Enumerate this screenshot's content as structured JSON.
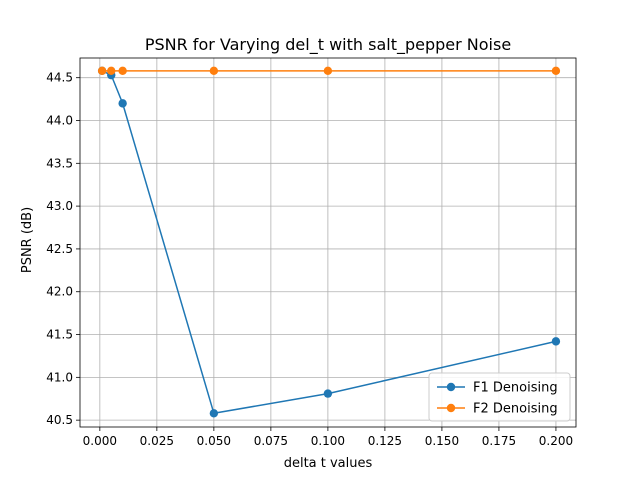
{
  "chart_data": {
    "type": "line",
    "title": "PSNR for Varying del_t with salt_pepper Noise",
    "xlabel": "delta t values",
    "ylabel": "PSNR (dB)",
    "xlim": [
      -0.0087,
      0.2088
    ],
    "ylim": [
      40.42,
      44.73
    ],
    "xticks": [
      0.0,
      0.025,
      0.05,
      0.075,
      0.1,
      0.125,
      0.15,
      0.175,
      0.2
    ],
    "xtick_labels": [
      "0.000",
      "0.025",
      "0.050",
      "0.075",
      "0.100",
      "0.125",
      "0.150",
      "0.175",
      "0.200"
    ],
    "yticks": [
      40.5,
      41.0,
      41.5,
      42.0,
      42.5,
      43.0,
      43.5,
      44.0,
      44.5
    ],
    "ytick_labels": [
      "40.5",
      "41.0",
      "41.5",
      "42.0",
      "42.5",
      "43.0",
      "43.5",
      "44.0",
      "44.5"
    ],
    "grid": true,
    "legend_position": "bottom-right",
    "series": [
      {
        "name": "F1 Denoising",
        "color": "#1f77b4",
        "x": [
          0.001,
          0.005,
          0.01,
          0.05,
          0.1,
          0.2
        ],
        "y": [
          44.58,
          44.53,
          44.2,
          40.58,
          40.81,
          41.42
        ]
      },
      {
        "name": "F2 Denoising",
        "color": "#ff7f0e",
        "x": [
          0.001,
          0.005,
          0.01,
          0.05,
          0.1,
          0.2
        ],
        "y": [
          44.58,
          44.58,
          44.58,
          44.58,
          44.58,
          44.58
        ]
      }
    ]
  }
}
